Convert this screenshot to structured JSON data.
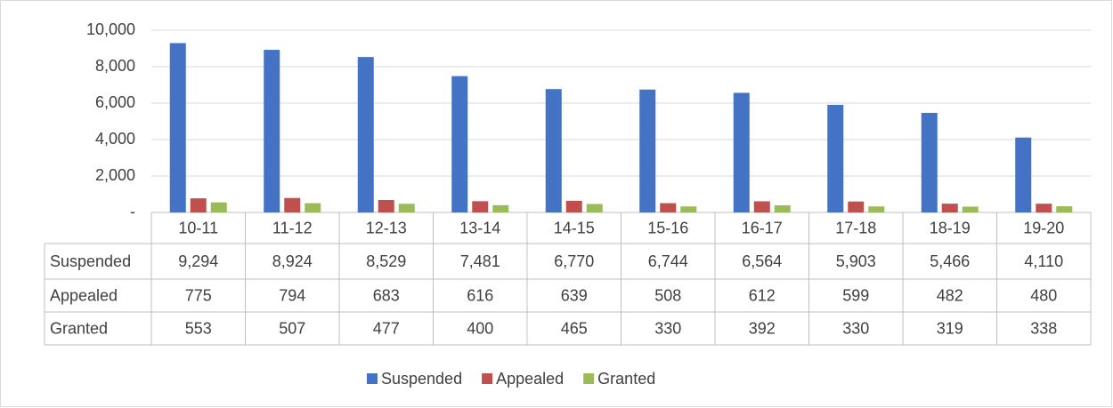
{
  "chart_data": {
    "type": "bar",
    "categories": [
      "10-11",
      "11-12",
      "12-13",
      "13-14",
      "14-15",
      "15-16",
      "16-17",
      "17-18",
      "18-19",
      "19-20"
    ],
    "series": [
      {
        "name": "Suspended",
        "color": "#4472c4",
        "values": [
          9294,
          8924,
          8529,
          7481,
          6770,
          6744,
          6564,
          5903,
          5466,
          4110
        ],
        "value_labels": [
          "9,294",
          "8,924",
          "8,529",
          "7,481",
          "6,770",
          "6,744",
          "6,564",
          "5,903",
          "5,466",
          "4,110"
        ]
      },
      {
        "name": "Appealed",
        "color": "#c0504d",
        "values": [
          775,
          794,
          683,
          616,
          639,
          508,
          612,
          599,
          482,
          480
        ]
      },
      {
        "name": "Granted",
        "color": "#9bbb59",
        "values": [
          553,
          507,
          477,
          400,
          465,
          330,
          392,
          330,
          319,
          338
        ]
      }
    ],
    "ylim": [
      0,
      10000
    ],
    "yticks": [
      {
        "value": 0,
        "label": "-"
      },
      {
        "value": 2000,
        "label": "2,000"
      },
      {
        "value": 4000,
        "label": "4,000"
      },
      {
        "value": 6000,
        "label": "6,000"
      },
      {
        "value": 8000,
        "label": "8,000"
      },
      {
        "value": 10000,
        "label": "10,000"
      }
    ],
    "grid": true,
    "legend": "bottom"
  }
}
